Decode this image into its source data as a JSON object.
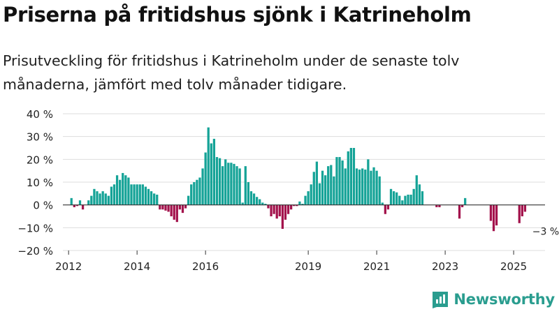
{
  "header": {
    "title": "Priserna på fritidshus sjönk i Katrineholm",
    "subtitle": "Prisutveckling för fritidshus i Katrineholm under de senaste tolv månaderna, jämfört med tolv månader tidigare."
  },
  "brand": {
    "name": "Newsworthy",
    "icon": "newsworthy-logo-icon"
  },
  "colors": {
    "positive": "#15a397",
    "negative": "#a3134c",
    "grid": "#dddddd",
    "text": "#222222"
  },
  "chart_data": {
    "type": "bar",
    "title": "Priserna på fritidshus sjönk i Katrineholm",
    "subtitle": "Prisutveckling för fritidshus i Katrineholm under de senaste tolv månaderna, jämfört med tolv månader tidigare.",
    "xlabel": "",
    "ylabel": "",
    "unit": "%",
    "ylim": [
      -20,
      40
    ],
    "yticks": [
      {
        "value": 40,
        "label": "40 %"
      },
      {
        "value": 30,
        "label": "30 %"
      },
      {
        "value": 20,
        "label": "20 %"
      },
      {
        "value": 10,
        "label": "10 %"
      },
      {
        "value": 0,
        "label": "0 %"
      },
      {
        "value": -10,
        "label": "−10 %"
      },
      {
        "value": -20,
        "label": "−20 %"
      }
    ],
    "grid": true,
    "x_start": "2011-11",
    "x_end": "2025-12",
    "xticks": [
      {
        "year": "2012",
        "month": "2012-01"
      },
      {
        "year": "2014",
        "month": "2014-01"
      },
      {
        "year": "2016",
        "month": "2016-01"
      },
      {
        "year": "2019",
        "month": "2019-01"
      },
      {
        "year": "2021",
        "month": "2021-01"
      },
      {
        "year": "2023",
        "month": "2023-01"
      },
      {
        "year": "2025",
        "month": "2025-01"
      }
    ],
    "series": [
      {
        "name": "Prisutveckling",
        "start_month": "2012-01",
        "values": [
          null,
          3.0,
          -1.0,
          -0.5,
          2.0,
          -2.0,
          null,
          2.0,
          4.0,
          7.0,
          6.0,
          5.0,
          6.0,
          5.0,
          4.0,
          8.0,
          9.0,
          13.0,
          11.0,
          14.0,
          13.0,
          12.0,
          9.0,
          9.0,
          9.0,
          9.0,
          9.0,
          8.0,
          7.0,
          6.0,
          5.0,
          4.5,
          -2.0,
          -2.0,
          -2.5,
          -3.0,
          -5.0,
          -6.5,
          -7.5,
          -2.0,
          -3.5,
          -1.5,
          4.0,
          9.0,
          10.0,
          11.0,
          12.0,
          16.0,
          23.0,
          34.0,
          27.0,
          29.0,
          21.0,
          20.5,
          17.0,
          20.0,
          18.5,
          18.5,
          18.0,
          17.0,
          16.0,
          1.0,
          17.0,
          10.0,
          6.0,
          5.0,
          3.5,
          2.5,
          1.0,
          0.5,
          -1.5,
          -5.0,
          -4.0,
          -6.0,
          -5.0,
          -10.5,
          -6.5,
          -4.0,
          -2.0,
          -0.5,
          -0.5,
          1.5,
          0.5,
          4.0,
          6.0,
          9.0,
          14.5,
          19.0,
          9.5,
          15.0,
          13.0,
          17.0,
          17.5,
          12.5,
          21.0,
          21.0,
          19.5,
          16.0,
          23.5,
          25.0,
          25.0,
          16.0,
          15.5,
          16.0,
          15.5,
          20.0,
          15.0,
          16.5,
          15.0,
          12.5,
          1.0,
          -4.0,
          -2.0,
          7.0,
          6.0,
          5.5,
          4.0,
          2.0,
          4.0,
          4.5,
          4.5,
          7.0,
          13.0,
          9.0,
          6.0,
          null,
          null,
          null,
          null,
          -1.0,
          -1.0,
          null,
          null,
          null,
          null,
          null,
          null,
          -6.0,
          -1.0,
          3.0,
          null,
          null,
          null,
          null,
          null,
          null,
          null,
          null,
          -7.0,
          -11.5,
          -9.0,
          null,
          null,
          null,
          null,
          null,
          null,
          null,
          -8.0,
          -5.0,
          -3.0
        ]
      }
    ],
    "annotations": [
      {
        "month": "2025-09",
        "value": -3.0,
        "text": "−3 %"
      }
    ]
  }
}
